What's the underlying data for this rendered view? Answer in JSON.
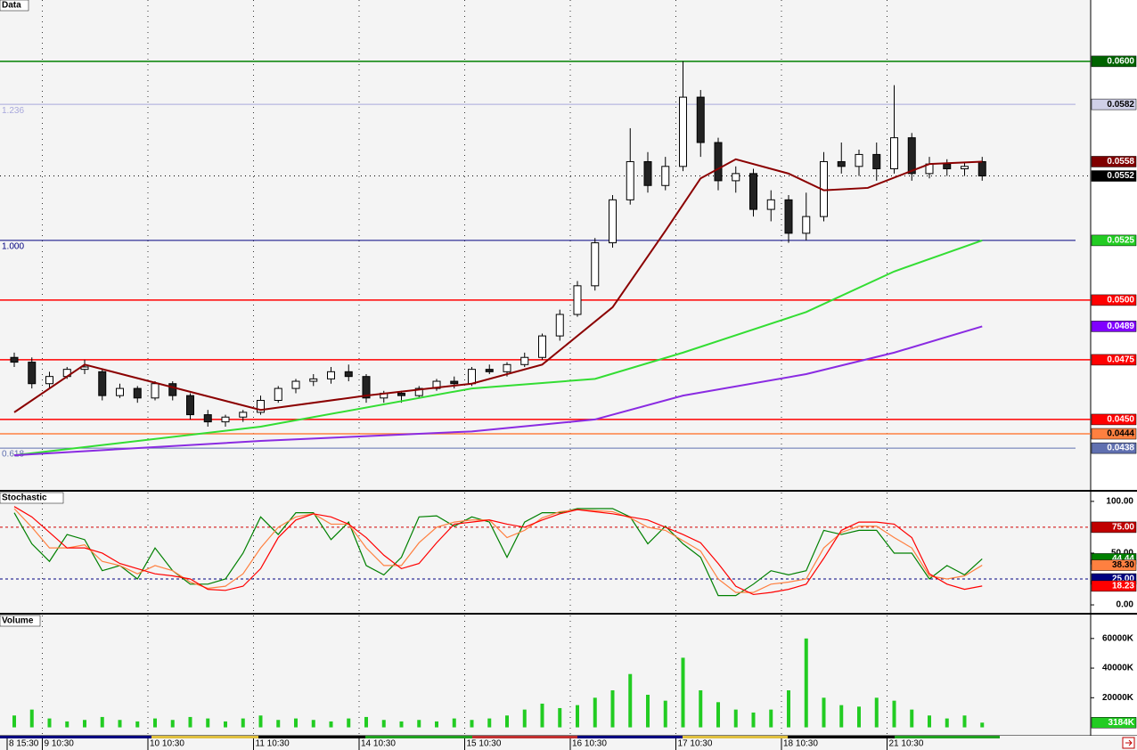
{
  "chart_data": [
    {
      "type": "candlestick",
      "title": "Data",
      "categories": [
        "8 15:30",
        null,
        "9 10:30",
        null,
        null,
        null,
        null,
        null,
        "10 10:30",
        null,
        null,
        null,
        null,
        null,
        "11 10:30",
        null,
        null,
        null,
        null,
        null,
        "14 10:30",
        null,
        null,
        null,
        null,
        null,
        "15 10:30",
        null,
        null,
        null,
        null,
        null,
        "16 10:30",
        null,
        null,
        null,
        null,
        null,
        "17 10:30",
        null,
        null,
        null,
        null,
        null,
        "18 10:30",
        null,
        null,
        null,
        null,
        null,
        "21 10:30",
        null,
        null,
        null,
        null,
        null
      ],
      "open": [
        0.0476,
        0.0474,
        0.0465,
        0.0468,
        0.0471,
        0.047,
        0.046,
        0.0463,
        0.0459,
        0.0465,
        0.046,
        0.0452,
        0.0449,
        0.0451,
        0.0453,
        0.0458,
        0.0463,
        0.0466,
        0.0467,
        0.047,
        0.0468,
        0.0459,
        0.0461,
        0.046,
        0.0463,
        0.0466,
        0.0465,
        0.0471,
        0.047,
        0.0473,
        0.0476,
        0.0485,
        0.0494,
        0.0506,
        0.0524,
        0.0542,
        0.0558,
        0.0548,
        0.0556,
        0.0585,
        0.0566,
        0.055,
        0.0553,
        0.0538,
        0.0542,
        0.0528,
        0.0535,
        0.0558,
        0.0556,
        0.0561,
        0.0555,
        0.0568,
        0.0553,
        0.0557,
        0.0555,
        0.0558
      ],
      "high": [
        0.0478,
        0.0476,
        0.047,
        0.0472,
        0.0475,
        0.0471,
        0.0465,
        0.0464,
        0.0466,
        0.0466,
        0.0461,
        0.0454,
        0.0452,
        0.0454,
        0.046,
        0.0464,
        0.0467,
        0.0469,
        0.0472,
        0.0473,
        0.0469,
        0.0462,
        0.0462,
        0.0464,
        0.0467,
        0.0468,
        0.0472,
        0.0473,
        0.0474,
        0.0478,
        0.0486,
        0.0496,
        0.0508,
        0.0526,
        0.0544,
        0.0572,
        0.0562,
        0.056,
        0.06,
        0.0588,
        0.0568,
        0.0556,
        0.0555,
        0.0546,
        0.0544,
        0.0545,
        0.0562,
        0.0566,
        0.0563,
        0.0566,
        0.059,
        0.057,
        0.056,
        0.0559,
        0.0558,
        0.056
      ],
      "low": [
        0.0472,
        0.0463,
        0.0463,
        0.0467,
        0.0469,
        0.0458,
        0.0459,
        0.0457,
        0.0458,
        0.0458,
        0.045,
        0.0447,
        0.0447,
        0.0449,
        0.0452,
        0.0457,
        0.0461,
        0.0464,
        0.0465,
        0.0466,
        0.0457,
        0.0457,
        0.0457,
        0.0459,
        0.0462,
        0.0463,
        0.0464,
        0.0469,
        0.0468,
        0.0472,
        0.0475,
        0.0483,
        0.0493,
        0.0504,
        0.0522,
        0.054,
        0.0545,
        0.0546,
        0.0554,
        0.056,
        0.0546,
        0.0545,
        0.0535,
        0.0533,
        0.0524,
        0.0525,
        0.0533,
        0.0553,
        0.0552,
        0.055,
        0.0553,
        0.055,
        0.0551,
        0.0552,
        0.0552,
        0.055
      ],
      "close": [
        0.0474,
        0.0465,
        0.0468,
        0.0471,
        0.0472,
        0.046,
        0.0463,
        0.0459,
        0.0465,
        0.046,
        0.0452,
        0.0449,
        0.0451,
        0.0453,
        0.0458,
        0.0463,
        0.0466,
        0.0467,
        0.047,
        0.0468,
        0.0459,
        0.0461,
        0.046,
        0.0463,
        0.0466,
        0.0465,
        0.0471,
        0.047,
        0.0473,
        0.0476,
        0.0485,
        0.0494,
        0.0506,
        0.0524,
        0.0542,
        0.0558,
        0.0548,
        0.0556,
        0.0585,
        0.0566,
        0.055,
        0.0553,
        0.0538,
        0.0542,
        0.0528,
        0.0535,
        0.0558,
        0.0556,
        0.0561,
        0.0555,
        0.0568,
        0.0553,
        0.0557,
        0.0555,
        0.0556,
        0.0552
      ],
      "overlays": [
        {
          "color": "#8b0000",
          "x": [
            0,
            4,
            14,
            20,
            26,
            30,
            34,
            37,
            39,
            41,
            44,
            46,
            48.5,
            52,
            55
          ],
          "values": [
            0.0453,
            0.0473,
            0.0454,
            0.046,
            0.0465,
            0.0473,
            0.0497,
            0.0529,
            0.0551,
            0.0559,
            0.0553,
            0.0546,
            0.0547,
            0.0557,
            0.0558
          ]
        },
        {
          "color": "#33dd33",
          "x": [
            0,
            14,
            26,
            33,
            38,
            45,
            50,
            55
          ],
          "values": [
            0.0435,
            0.0447,
            0.0463,
            0.0467,
            0.0478,
            0.0495,
            0.0512,
            0.0525
          ]
        },
        {
          "color": "#8a2be2",
          "x": [
            0,
            14,
            26,
            33,
            38,
            45,
            50,
            55
          ],
          "values": [
            0.0435,
            0.0441,
            0.0445,
            0.045,
            0.046,
            0.0469,
            0.0478,
            0.0489
          ]
        }
      ],
      "ylim": [
        0.04205,
        0.06257
      ],
      "yticks": [
        {
          "value": 0.06,
          "label": "0.0600",
          "color": "#006400",
          "line": "#008000"
        },
        {
          "value": 0.0582,
          "label": "0.0582",
          "color": "#d0d0e8",
          "line": "#a8a8dc",
          "line_label": "1.236"
        },
        {
          "value": 0.0558,
          "label": "0.0558",
          "color": "#800000"
        },
        {
          "value": 0.0552,
          "label": "0.0552",
          "color": "#000000",
          "line": "#000000",
          "dash": true
        },
        {
          "value": 0.0525,
          "label": "0.0525",
          "color": "#22cc22",
          "line": "#000080",
          "line_label": "1.000"
        },
        {
          "value": 0.05,
          "label": "0.0500",
          "color": "#ff0000",
          "line": "#ff0000"
        },
        {
          "value": 0.0489,
          "label": "0.0489",
          "color": "#8000ff"
        },
        {
          "value": 0.0475,
          "label": "0.0475",
          "color": "#ff0000",
          "line": "#ff0000"
        },
        {
          "value": 0.045,
          "label": "0.0450",
          "color": "#ff0000",
          "line": "#ff0000"
        },
        {
          "value": 0.0444,
          "label": "0.0444",
          "color": "#ff8040",
          "line": "#ff8040"
        },
        {
          "value": 0.0438,
          "label": "0.0438",
          "color": "#6070b0",
          "line": "#6070b0",
          "line_label": "0.618"
        }
      ]
    },
    {
      "type": "line",
      "title": "Stochastic",
      "series": [
        {
          "color": "#008000",
          "values": [
            89,
            59,
            42,
            68,
            63,
            33,
            38,
            25,
            55,
            33,
            20,
            20,
            25,
            50,
            85,
            68,
            89,
            89,
            63,
            80,
            38,
            29,
            46,
            85,
            86,
            76,
            85,
            80,
            46,
            80,
            89,
            89,
            93,
            93,
            93,
            85,
            59,
            76,
            59,
            46,
            9,
            9,
            20,
            33,
            29,
            33,
            72,
            68,
            72,
            72,
            50,
            50,
            25,
            38,
            29,
            44.44
          ]
        },
        {
          "color": "#ff8040",
          "values": [
            93,
            75,
            55,
            55,
            58,
            42,
            38,
            30,
            38,
            33,
            22,
            16,
            18,
            30,
            55,
            75,
            85,
            88,
            78,
            78,
            55,
            38,
            38,
            60,
            75,
            80,
            82,
            82,
            65,
            72,
            84,
            90,
            92,
            91,
            90,
            84,
            75,
            72,
            62,
            52,
            25,
            12,
            12,
            20,
            22,
            25,
            55,
            70,
            76,
            76,
            65,
            55,
            28,
            25,
            28,
            38.3
          ]
        },
        {
          "color": "#ff0000",
          "values": [
            95,
            85,
            70,
            55,
            55,
            50,
            40,
            35,
            30,
            28,
            25,
            15,
            14,
            18,
            35,
            65,
            82,
            88,
            85,
            78,
            65,
            48,
            35,
            40,
            60,
            78,
            80,
            82,
            78,
            75,
            82,
            88,
            92,
            90,
            88,
            85,
            82,
            75,
            68,
            60,
            40,
            18,
            10,
            12,
            15,
            20,
            45,
            72,
            80,
            80,
            78,
            65,
            30,
            20,
            15,
            18.23
          ]
        }
      ],
      "ylim": [
        -7.7,
        108.5
      ],
      "yticks": [
        {
          "value": 100,
          "label": "100.00"
        },
        {
          "value": 75,
          "label": "75.00",
          "color": "#c00000",
          "line": "#d00000",
          "dash": true
        },
        {
          "value": 50,
          "label": "50.00"
        },
        {
          "value": 44.44,
          "label": "44.44",
          "color": "#008000"
        },
        {
          "value": 38.3,
          "label": "38.30",
          "color": "#ff8040"
        },
        {
          "value": 25,
          "label": "25.00",
          "color": "#000080",
          "line": "#000080",
          "dash": true
        },
        {
          "value": 18.23,
          "label": "18.23",
          "color": "#ff0000"
        },
        {
          "value": 0,
          "label": "0.00"
        }
      ]
    },
    {
      "type": "bar",
      "title": "Volume",
      "color": "#22cc22",
      "values": [
        8000,
        12000,
        6000,
        4000,
        5000,
        7000,
        5000,
        4000,
        6000,
        5000,
        7000,
        6000,
        4000,
        6000,
        8000,
        5000,
        6000,
        5000,
        4000,
        6000,
        7000,
        5000,
        4000,
        5000,
        4000,
        6000,
        5000,
        6000,
        8000,
        12000,
        16000,
        13000,
        15000,
        20000,
        25000,
        36000,
        22000,
        18000,
        47000,
        25000,
        17000,
        12000,
        10000,
        12000,
        25000,
        60000,
        20000,
        15000,
        14000,
        20000,
        18000,
        12000,
        8000,
        6000,
        8000,
        3184
      ],
      "ylim": [
        -5670,
        75520
      ],
      "yticks": [
        {
          "value": 60000,
          "label": "60000K"
        },
        {
          "value": 40000,
          "label": "40000K"
        },
        {
          "value": 20000,
          "label": "20000K"
        },
        {
          "value": 3184,
          "label": "3184K",
          "color": "#22cc22"
        }
      ]
    }
  ]
}
